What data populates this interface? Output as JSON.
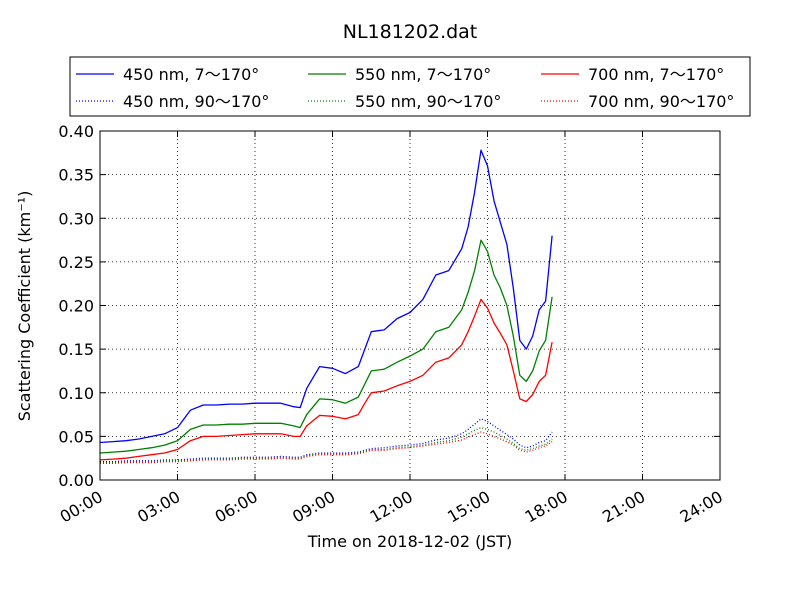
{
  "chart_data": {
    "type": "line",
    "title": "NL181202.dat",
    "xlabel": "Time on 2018-12-02 (JST)",
    "ylabel": "Scattering Coefficient (km⁻¹)",
    "xlim": [
      "00:00",
      "24:00"
    ],
    "ylim": [
      0.0,
      0.4
    ],
    "x_ticks": [
      "00:00",
      "03:00",
      "06:00",
      "09:00",
      "12:00",
      "15:00",
      "18:00",
      "21:00",
      "24:00"
    ],
    "y_ticks": [
      "0.00",
      "0.05",
      "0.10",
      "0.15",
      "0.20",
      "0.25",
      "0.30",
      "0.35",
      "0.40"
    ],
    "grid": true,
    "legend_placement": "top, above plot, 3 columns",
    "x": [
      "00:00",
      "00:30",
      "01:00",
      "01:30",
      "02:00",
      "02:30",
      "03:00",
      "03:30",
      "04:00",
      "04:30",
      "05:00",
      "05:30",
      "06:00",
      "06:30",
      "07:00",
      "07:30",
      "07:45",
      "08:00",
      "08:30",
      "09:00",
      "09:30",
      "10:00",
      "10:15",
      "10:30",
      "11:00",
      "11:30",
      "12:00",
      "12:30",
      "13:00",
      "13:30",
      "14:00",
      "14:15",
      "14:30",
      "14:45",
      "15:00",
      "15:15",
      "15:30",
      "15:45",
      "16:00",
      "16:15",
      "16:30",
      "16:45",
      "17:00",
      "17:15",
      "17:30"
    ],
    "series": [
      {
        "name": "450 nm, 7～170°",
        "color": "#0000ff",
        "style": "solid",
        "values": [
          0.043,
          0.044,
          0.045,
          0.047,
          0.05,
          0.053,
          0.06,
          0.08,
          0.086,
          0.086,
          0.087,
          0.087,
          0.088,
          0.088,
          0.088,
          0.084,
          0.083,
          0.105,
          0.13,
          0.128,
          0.122,
          0.13,
          0.15,
          0.17,
          0.172,
          0.185,
          0.192,
          0.207,
          0.235,
          0.24,
          0.265,
          0.29,
          0.33,
          0.378,
          0.36,
          0.32,
          0.295,
          0.27,
          0.22,
          0.16,
          0.15,
          0.165,
          0.195,
          0.205,
          0.28
        ]
      },
      {
        "name": "550 nm, 7～170°",
        "color": "#008000",
        "style": "solid",
        "values": [
          0.031,
          0.032,
          0.033,
          0.035,
          0.037,
          0.04,
          0.045,
          0.058,
          0.063,
          0.063,
          0.064,
          0.064,
          0.065,
          0.065,
          0.065,
          0.062,
          0.06,
          0.075,
          0.093,
          0.092,
          0.088,
          0.095,
          0.11,
          0.125,
          0.127,
          0.135,
          0.142,
          0.15,
          0.17,
          0.175,
          0.195,
          0.215,
          0.24,
          0.275,
          0.262,
          0.235,
          0.22,
          0.2,
          0.165,
          0.12,
          0.113,
          0.125,
          0.148,
          0.16,
          0.21
        ]
      },
      {
        "name": "700 nm, 7～170°",
        "color": "#ff0000",
        "style": "solid",
        "values": [
          0.023,
          0.024,
          0.025,
          0.027,
          0.029,
          0.031,
          0.035,
          0.045,
          0.05,
          0.05,
          0.051,
          0.052,
          0.053,
          0.053,
          0.053,
          0.05,
          0.05,
          0.062,
          0.074,
          0.073,
          0.07,
          0.075,
          0.088,
          0.1,
          0.102,
          0.108,
          0.113,
          0.12,
          0.135,
          0.14,
          0.155,
          0.17,
          0.188,
          0.207,
          0.197,
          0.18,
          0.168,
          0.155,
          0.125,
          0.093,
          0.09,
          0.098,
          0.113,
          0.12,
          0.158
        ]
      },
      {
        "name": "450 nm, 90～170°",
        "color": "#0000ff",
        "style": "dotted",
        "values": [
          0.021,
          0.021,
          0.022,
          0.022,
          0.022,
          0.023,
          0.023,
          0.024,
          0.025,
          0.025,
          0.025,
          0.026,
          0.026,
          0.026,
          0.027,
          0.026,
          0.026,
          0.029,
          0.031,
          0.031,
          0.031,
          0.032,
          0.034,
          0.036,
          0.037,
          0.039,
          0.04,
          0.042,
          0.046,
          0.048,
          0.053,
          0.058,
          0.064,
          0.07,
          0.067,
          0.062,
          0.057,
          0.052,
          0.047,
          0.04,
          0.037,
          0.039,
          0.043,
          0.045,
          0.055
        ]
      },
      {
        "name": "550 nm, 90～170°",
        "color": "#008000",
        "style": "dotted",
        "values": [
          0.02,
          0.02,
          0.021,
          0.021,
          0.021,
          0.022,
          0.022,
          0.023,
          0.024,
          0.024,
          0.024,
          0.025,
          0.025,
          0.025,
          0.026,
          0.025,
          0.025,
          0.028,
          0.03,
          0.03,
          0.03,
          0.031,
          0.033,
          0.035,
          0.035,
          0.037,
          0.038,
          0.04,
          0.043,
          0.045,
          0.049,
          0.053,
          0.057,
          0.06,
          0.058,
          0.055,
          0.051,
          0.047,
          0.042,
          0.036,
          0.034,
          0.036,
          0.039,
          0.041,
          0.047
        ]
      },
      {
        "name": "700 nm, 90～170°",
        "color": "#ff0000",
        "style": "dotted",
        "values": [
          0.019,
          0.019,
          0.02,
          0.02,
          0.02,
          0.021,
          0.021,
          0.022,
          0.023,
          0.023,
          0.023,
          0.024,
          0.024,
          0.024,
          0.025,
          0.024,
          0.024,
          0.027,
          0.029,
          0.029,
          0.029,
          0.03,
          0.032,
          0.034,
          0.034,
          0.036,
          0.037,
          0.039,
          0.041,
          0.043,
          0.046,
          0.049,
          0.052,
          0.055,
          0.053,
          0.05,
          0.047,
          0.044,
          0.04,
          0.034,
          0.032,
          0.034,
          0.037,
          0.039,
          0.044
        ]
      }
    ]
  }
}
